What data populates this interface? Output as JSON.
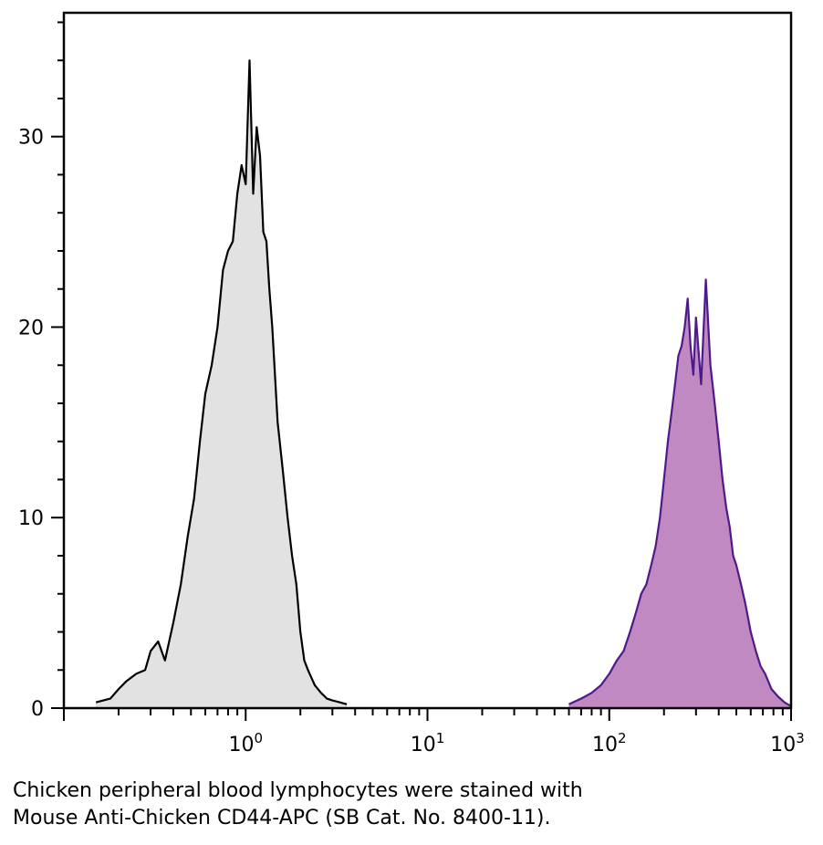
{
  "chart_data": {
    "type": "area",
    "title": "",
    "xlabel": "",
    "ylabel": "",
    "x_scale": "log",
    "xlim": [
      0.1,
      1000
    ],
    "ylim": [
      0,
      36.5
    ],
    "grid": false,
    "legend": "none",
    "x_tick_labels": [
      {
        "value": 1,
        "base": "10",
        "exp": "0"
      },
      {
        "value": 10,
        "base": "10",
        "exp": "1"
      },
      {
        "value": 100,
        "base": "10",
        "exp": "2"
      },
      {
        "value": 1000,
        "base": "10",
        "exp": "3"
      }
    ],
    "y_tick_labels": [
      {
        "value": 0,
        "label": "0"
      },
      {
        "value": 10,
        "label": "10"
      },
      {
        "value": 20,
        "label": "20"
      },
      {
        "value": 30,
        "label": "30"
      }
    ],
    "series": [
      {
        "key": "unstained",
        "line_color": "#000000",
        "fill_color": "#e2e2e2",
        "x": [
          0.15,
          0.18,
          0.2,
          0.22,
          0.25,
          0.28,
          0.3,
          0.33,
          0.36,
          0.4,
          0.44,
          0.48,
          0.52,
          0.56,
          0.6,
          0.65,
          0.7,
          0.75,
          0.8,
          0.85,
          0.9,
          0.95,
          1.0,
          1.05,
          1.1,
          1.15,
          1.2,
          1.25,
          1.3,
          1.35,
          1.4,
          1.5,
          1.6,
          1.7,
          1.8,
          1.9,
          2.0,
          2.1,
          2.2,
          2.4,
          2.6,
          2.8,
          3.0,
          3.3,
          3.6
        ],
        "y": [
          0.3,
          0.5,
          1.0,
          1.4,
          1.8,
          2.0,
          3.0,
          3.5,
          2.5,
          4.5,
          6.5,
          9.0,
          11.0,
          14.0,
          16.5,
          18.0,
          20.0,
          23.0,
          24.0,
          24.5,
          27.0,
          28.5,
          27.5,
          34.0,
          27.0,
          30.5,
          29.0,
          25.0,
          24.5,
          22.0,
          20.0,
          15.0,
          12.5,
          10.0,
          8.0,
          6.5,
          4.0,
          2.5,
          2.0,
          1.2,
          0.8,
          0.5,
          0.4,
          0.3,
          0.2
        ]
      },
      {
        "key": "cd44-apc",
        "line_color": "#4e1a8a",
        "fill_color": "#c089c2",
        "x": [
          60,
          70,
          80,
          90,
          100,
          110,
          120,
          130,
          140,
          150,
          160,
          170,
          180,
          190,
          200,
          210,
          220,
          230,
          240,
          250,
          260,
          270,
          280,
          290,
          300,
          320,
          340,
          360,
          380,
          400,
          420,
          440,
          460,
          480,
          500,
          530,
          560,
          600,
          640,
          680,
          720,
          780,
          850,
          920,
          1000
        ],
        "y": [
          0.2,
          0.5,
          0.8,
          1.2,
          1.8,
          2.5,
          3.0,
          4.0,
          5.0,
          6.0,
          6.5,
          7.5,
          8.5,
          10.0,
          12.0,
          14.0,
          15.5,
          17.0,
          18.5,
          19.0,
          20.0,
          21.5,
          19.0,
          17.5,
          20.5,
          17.0,
          22.5,
          18.0,
          16.0,
          14.0,
          12.0,
          10.5,
          9.5,
          8.0,
          7.5,
          6.5,
          5.5,
          4.0,
          3.0,
          2.2,
          1.8,
          1.0,
          0.6,
          0.3,
          0.1
        ]
      }
    ]
  },
  "caption": {
    "line1": "Chicken peripheral blood lymphocytes were stained with",
    "line2": "Mouse Anti-Chicken CD44-APC (SB Cat. No. 8400-11)."
  }
}
